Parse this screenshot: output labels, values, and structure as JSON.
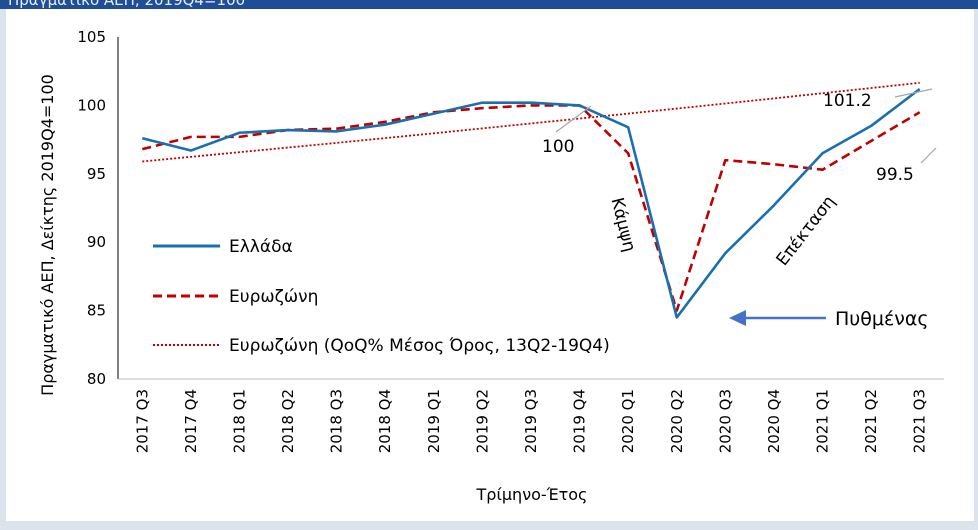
{
  "header": {
    "partial_title": "Πραγματικό ΑΕΠ, 2019Q4=100"
  },
  "chart_data": {
    "type": "line",
    "categories": [
      "2017 Q3",
      "2017 Q4",
      "2018 Q1",
      "2018 Q2",
      "2018 Q3",
      "2018 Q4",
      "2019 Q1",
      "2019 Q2",
      "2019 Q3",
      "2019 Q4",
      "2020 Q1",
      "2020 Q2",
      "2020 Q3",
      "2020 Q4",
      "2021 Q1",
      "2021 Q2",
      "2021 Q3"
    ],
    "xlabel": "Τρίμηνο-Έτος",
    "ylabel": "Πραγματικό ΑΕΠ, Δείκτης 2019Q4=100",
    "ylim": [
      80,
      105
    ],
    "yticks": [
      80,
      85,
      90,
      95,
      100,
      105
    ],
    "grid": false,
    "legend_position": "left",
    "series": [
      {
        "name": "Ελλάδα",
        "style": "solid",
        "color": "#1a6faf",
        "values": [
          97.6,
          96.7,
          98.0,
          98.2,
          98.1,
          98.6,
          99.4,
          100.2,
          100.2,
          100.0,
          98.4,
          84.5,
          89.2,
          92.7,
          96.5,
          98.5,
          101.2
        ]
      },
      {
        "name": "Ευρωζώνη",
        "style": "dashed",
        "color": "#c00000",
        "values": [
          96.8,
          97.7,
          97.7,
          98.2,
          98.3,
          98.8,
          99.5,
          99.8,
          100.0,
          100.0,
          96.5,
          85.0,
          96.0,
          95.7,
          95.3,
          97.4,
          99.5
        ]
      },
      {
        "name": "Ευρωζώνη (QoQ% Μέσος Όρος, 13Q2-19Q4)",
        "style": "dotted",
        "color": "#c00000",
        "values": [
          95.9,
          96.24,
          96.58,
          96.92,
          97.26,
          97.61,
          97.96,
          98.32,
          98.68,
          99.04,
          99.4,
          99.77,
          100.14,
          100.51,
          100.89,
          101.27,
          101.65
        ]
      }
    ],
    "annotations": {
      "value_2019q4": "100",
      "value_greece_2021q3": "101.2",
      "value_ez_2021q3": "99.5",
      "recession": "Κάμψη",
      "expansion": "Επέκταση",
      "trough": "Πυθμένας"
    },
    "colors": {
      "greece": "#1a6faf",
      "eurozone": "#c00000",
      "arrow": "#4472c4",
      "leader": "#a6a6a6"
    }
  }
}
